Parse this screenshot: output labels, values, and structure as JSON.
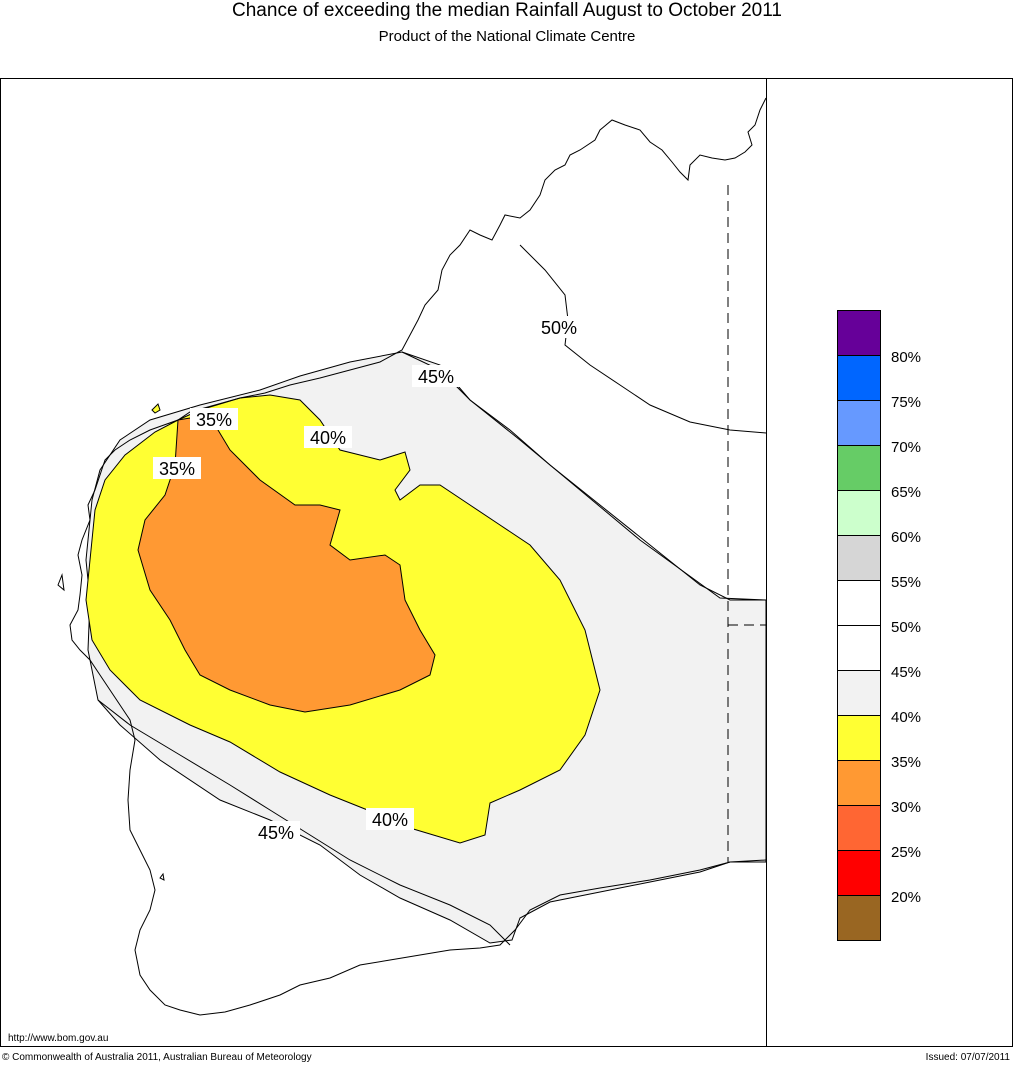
{
  "title": "Chance of exceeding the median Rainfall August to October 2011",
  "subtitle": "Product of the National Climate Centre",
  "contour_labels": {
    "c50": "50%",
    "c45_north": "45%",
    "c45_south": "45%",
    "c40_north": "40%",
    "c40_south": "40%",
    "c35_north": "35%",
    "c35_west": "35%"
  },
  "legend": {
    "swatches": [
      {
        "color": "#660099"
      },
      {
        "color": "#0066ff"
      },
      {
        "color": "#6699ff"
      },
      {
        "color": "#66cc66"
      },
      {
        "color": "#ccffcc"
      },
      {
        "color": "#d6d6d6"
      },
      {
        "color": "#ffffff"
      },
      {
        "color": "#ffffff"
      },
      {
        "color": "#f2f2f2"
      },
      {
        "color": "#ffff33"
      },
      {
        "color": "#ff9933"
      },
      {
        "color": "#ff6633"
      },
      {
        "color": "#ff0000"
      },
      {
        "color": "#996622"
      }
    ],
    "labels": [
      "80%",
      "75%",
      "70%",
      "65%",
      "60%",
      "55%",
      "50%",
      "45%",
      "40%",
      "35%",
      "30%",
      "25%",
      "20%"
    ]
  },
  "colors": {
    "band_40_45": "#f2f2f2",
    "band_35_40": "#ffff33",
    "band_30_35": "#ff9933"
  },
  "footer": {
    "url": "http://www.bom.gov.au",
    "copyright": "© Commonwealth of Australia 2011, Australian Bureau of Meteorology",
    "issued": "Issued: 07/07/2011"
  }
}
